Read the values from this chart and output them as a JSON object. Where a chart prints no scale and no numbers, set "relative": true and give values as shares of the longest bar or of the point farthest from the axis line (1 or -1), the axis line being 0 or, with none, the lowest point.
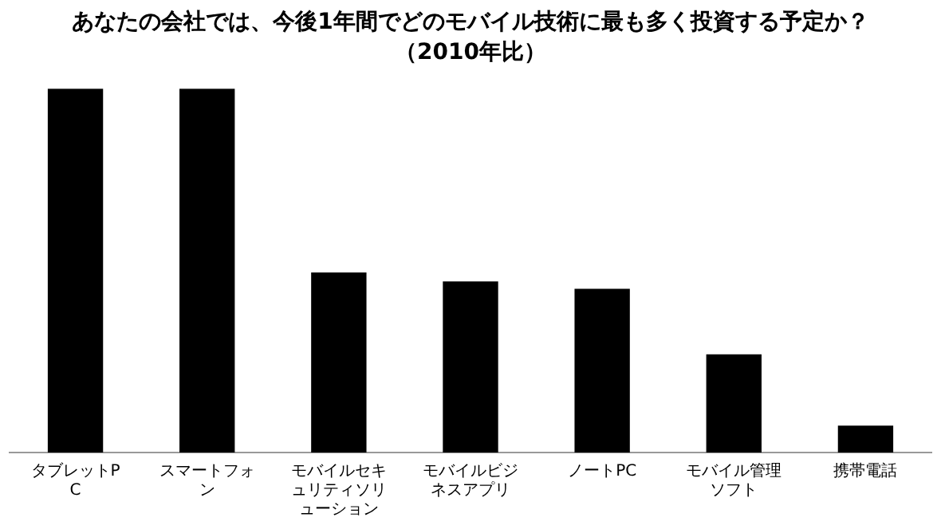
{
  "chart_data": {
    "type": "bar",
    "title": "あなたの会社では、今後1年間でどのモバイル技術に最も多く投資する予定か？",
    "subtitle": "（2010年比）",
    "categories": [
      "タブレットPC",
      "スマートフォン",
      "モバイルセキュリティソリューション",
      "モバイルビジネスアプリ",
      "ノートPC",
      "モバイル管理ソフト",
      "携帯電話"
    ],
    "values": [
      1,
      1,
      0.495,
      0.47,
      0.45,
      0.27,
      0.074
    ],
    "color": "#000000",
    "relative": true,
    "grid": false,
    "legend": false
  }
}
